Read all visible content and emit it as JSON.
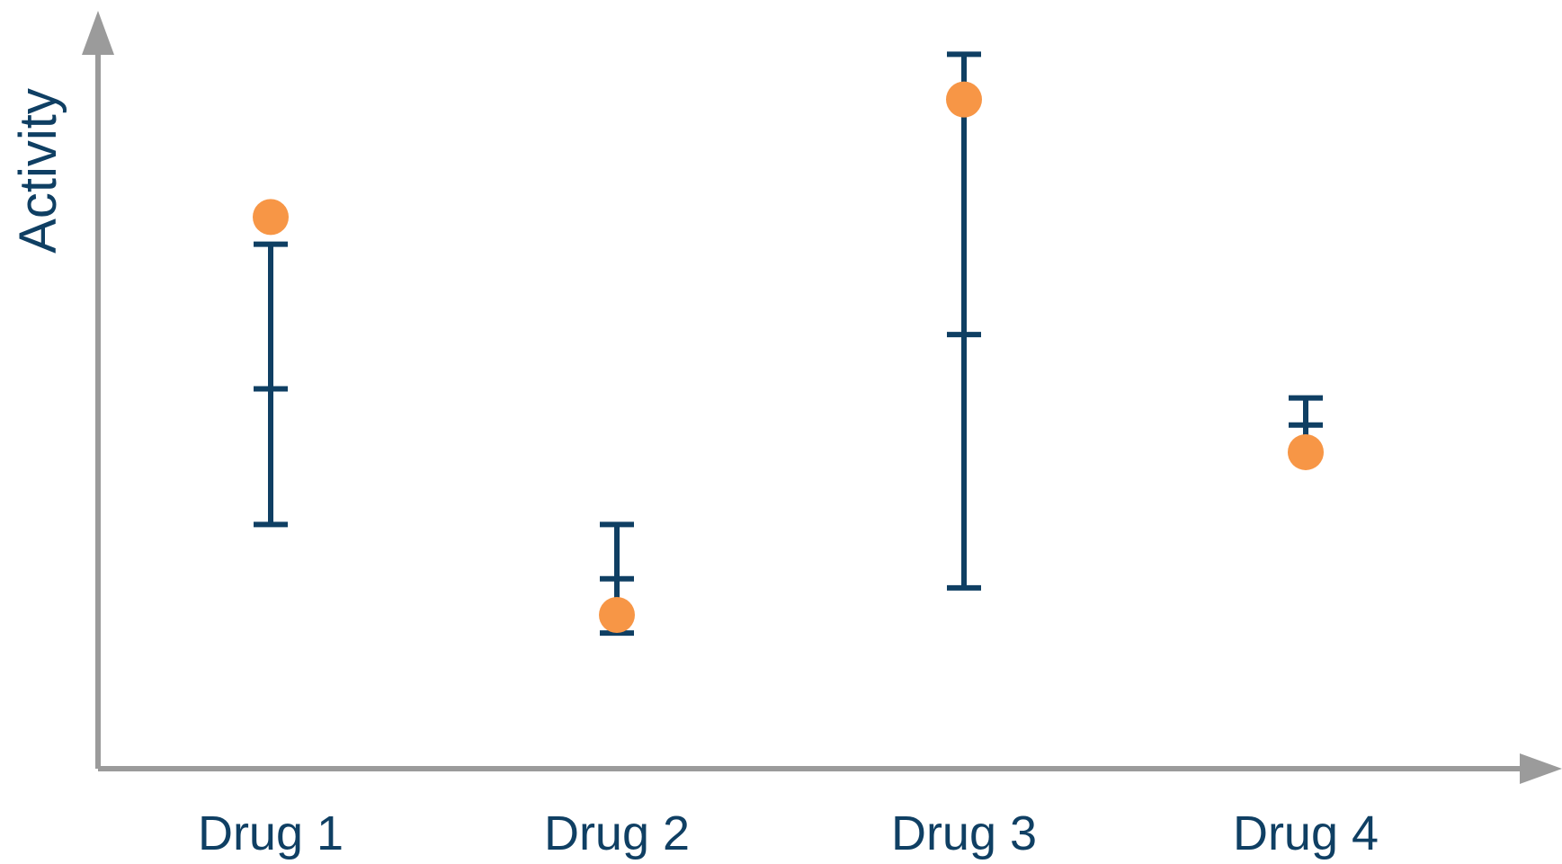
{
  "chart_data": {
    "type": "scatter",
    "title": "",
    "xlabel": "",
    "ylabel": "Activity",
    "categories": [
      "Drug 1",
      "Drug 2",
      "Drug 3",
      "Drug 4"
    ],
    "series": [
      {
        "values": [
          6.1,
          1.7,
          7.4,
          3.5
        ],
        "mean": [
          4.2,
          2.1,
          4.8,
          3.8
        ],
        "upper": [
          5.8,
          2.7,
          7.9,
          4.1
        ],
        "lower": [
          2.7,
          1.5,
          2.0,
          3.5
        ]
      }
    ],
    "ylim": [
      0,
      8.5
    ],
    "grid": false,
    "legend": "none",
    "colors": {
      "point": "#f79646",
      "errorbar": "#0f3f63",
      "axis": "#9b9b9b",
      "text": "#0f3f63"
    }
  }
}
